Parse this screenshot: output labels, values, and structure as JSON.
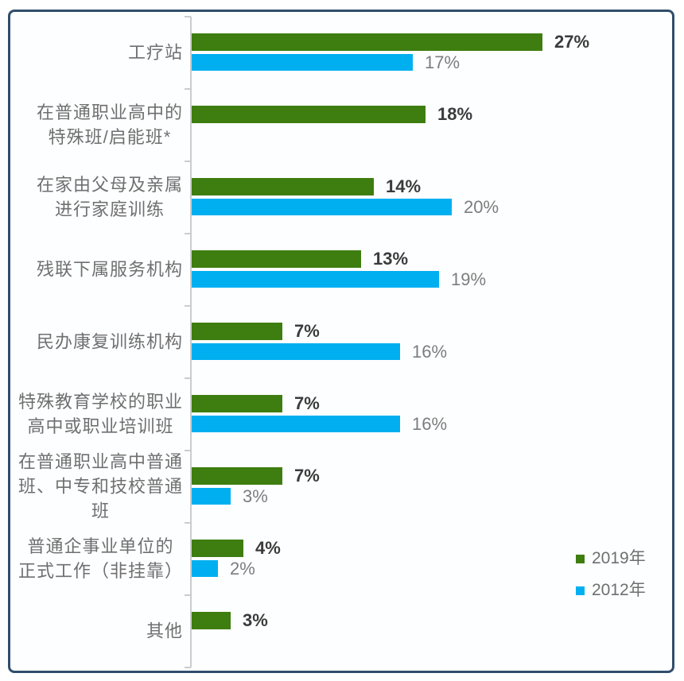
{
  "chart_data": {
    "type": "bar",
    "orientation": "horizontal",
    "title": "",
    "xlabel": "",
    "ylabel": "",
    "xlim": [
      0,
      37
    ],
    "grid": false,
    "legend_position": "right-lower",
    "value_suffix": "%",
    "categories": [
      [
        "工疗站"
      ],
      [
        "在普通职业高中的",
        "特殊班/启能班*"
      ],
      [
        "在家由父母及亲属",
        "进行家庭训练"
      ],
      [
        "残联下属服务机构"
      ],
      [
        "民办康复训练机构"
      ],
      [
        "特殊教育学校的职业",
        "高中或职业培训班"
      ],
      [
        "在普通职业高中普通",
        "班、中专和技校普通",
        "班"
      ],
      [
        "普通企事业单位的",
        "正式工作（非挂靠）"
      ],
      [
        "其他"
      ]
    ],
    "series": [
      {
        "name": "2019年",
        "color": "#3e7d0f",
        "values": [
          27,
          18,
          14,
          13,
          7,
          7,
          7,
          4,
          3
        ],
        "value_labels": [
          "27%",
          "18%",
          "14%",
          "13%",
          "7%",
          "7%",
          "7%",
          "4%",
          "3%"
        ]
      },
      {
        "name": "2012年",
        "color": "#00aff0",
        "values": [
          17,
          null,
          20,
          19,
          16,
          16,
          3,
          2,
          null
        ],
        "value_labels": [
          "17%",
          null,
          "20%",
          "19%",
          "16%",
          "16%",
          "3%",
          "2%",
          null
        ]
      }
    ]
  },
  "legend": {
    "items": [
      {
        "label": "2019年",
        "swatch_color": "#3e7d0f"
      },
      {
        "label": "2012年",
        "swatch_color": "#00aff0"
      }
    ]
  },
  "colors": {
    "frame_border": "#304e6b",
    "plot_background": "#fdfeff",
    "axis_line": "#cccccc",
    "category_label": "#6f6f6f",
    "value_label_2019": "#3b3b3b",
    "value_label_2012": "#7d7d7d",
    "legend_text": "#6f6f6f"
  }
}
